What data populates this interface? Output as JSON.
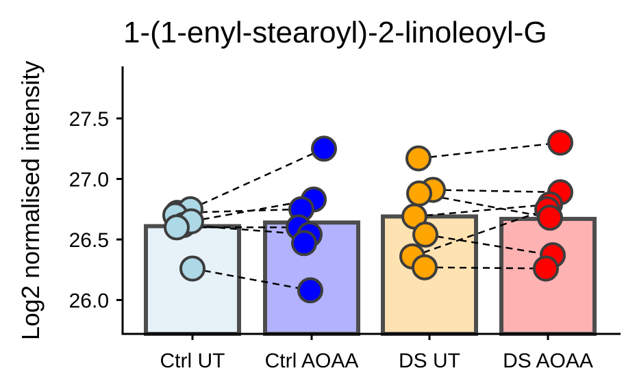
{
  "chart_data": {
    "type": "bar",
    "title": "1-(1-enyl-stearoyl)-2-linoleoyl-G",
    "xlabel": "",
    "ylabel": "Log2 normalised intensity",
    "ylim": [
      25.72,
      27.93
    ],
    "yticks": [
      "26.0",
      "26.5",
      "27.0",
      "27.5"
    ],
    "categories": [
      "Ctrl UT",
      "Ctrl AOAA",
      "DS UT",
      "DS AOAA"
    ],
    "bar_values": [
      26.61,
      26.64,
      26.69,
      26.67
    ],
    "bar_fill_colors": [
      "#e6f1f8",
      "#b2b2ff",
      "#ffe2b2",
      "#ffb2b2"
    ],
    "point_colors": [
      "#add8e6",
      "#0000ff",
      "#ffa500",
      "#ff0000"
    ],
    "outline_color": "#4d4d4d",
    "points": [
      [
        26.72,
        26.75,
        26.7,
        26.62,
        26.65,
        26.6,
        26.26
      ],
      [
        27.25,
        26.83,
        26.75,
        26.6,
        26.54,
        26.47,
        26.08
      ],
      [
        27.17,
        26.91,
        26.88,
        26.69,
        26.54,
        26.36,
        26.27
      ],
      [
        27.3,
        26.89,
        26.79,
        26.75,
        26.68,
        26.37,
        26.26
      ]
    ],
    "pairs": [
      {
        "from": [
          0,
          6
        ],
        "to": [
          1,
          6
        ]
      },
      {
        "from": [
          0,
          1
        ],
        "to": [
          1,
          0
        ]
      },
      {
        "from": [
          0,
          0
        ],
        "to": [
          1,
          2
        ]
      },
      {
        "from": [
          0,
          4
        ],
        "to": [
          1,
          1
        ]
      },
      {
        "from": [
          0,
          5
        ],
        "to": [
          1,
          3
        ]
      },
      {
        "from": [
          0,
          3
        ],
        "to": [
          1,
          4
        ]
      },
      {
        "from": [
          2,
          0
        ],
        "to": [
          3,
          0
        ]
      },
      {
        "from": [
          2,
          1
        ],
        "to": [
          3,
          1
        ]
      },
      {
        "from": [
          2,
          2
        ],
        "to": [
          3,
          4
        ]
      },
      {
        "from": [
          2,
          3
        ],
        "to": [
          3,
          2
        ]
      },
      {
        "from": [
          2,
          4
        ],
        "to": [
          3,
          5
        ]
      },
      {
        "from": [
          2,
          5
        ],
        "to": [
          3,
          3
        ]
      },
      {
        "from": [
          2,
          6
        ],
        "to": [
          3,
          6
        ]
      }
    ],
    "grid": false,
    "legend": "none"
  }
}
